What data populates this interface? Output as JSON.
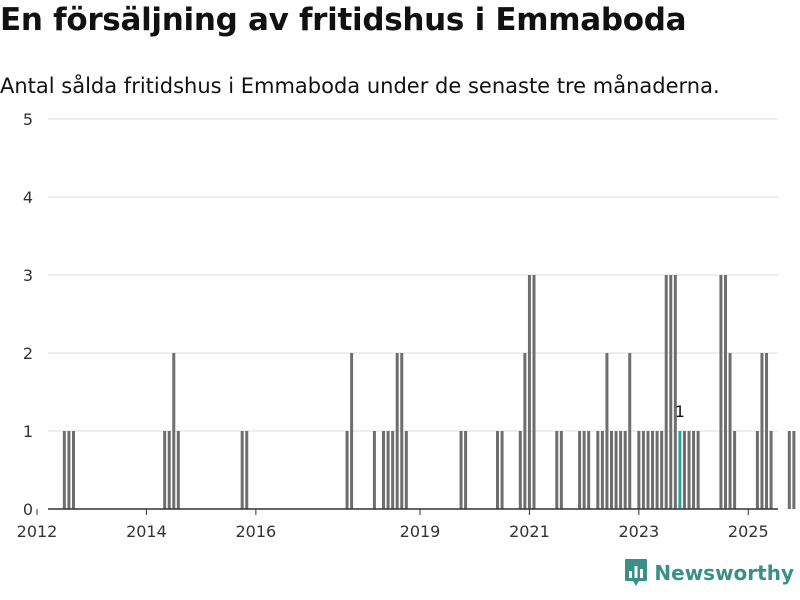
{
  "chart_data": {
    "type": "bar",
    "title": "En försäljning av fritidshus i Emmaboda",
    "subtitle": "Antal sålda fritidshus i Emmaboda under de senaste tre månaderna.",
    "xlabel": "",
    "ylabel": "",
    "ylim": [
      0,
      5
    ],
    "y_ticks": [
      0,
      1,
      2,
      3,
      4,
      5
    ],
    "x_ticks": [
      "2012",
      "2014",
      "2016",
      "2019",
      "2021",
      "2023",
      "2025"
    ],
    "grid": true,
    "bar_color": "#6e6e6e",
    "highlight_color": "#2aa39a",
    "highlight_index": 48,
    "highlight_label": "1",
    "months": [
      "2012-07",
      "2012-08",
      "2012-09",
      "2014-05",
      "2014-06",
      "2014-07",
      "2014-08",
      "2015-10",
      "2015-11",
      "2017-09",
      "2017-10",
      "2018-03",
      "2018-05",
      "2018-06",
      "2018-07",
      "2018-08",
      "2018-09",
      "2018-10",
      "2019-10",
      "2019-11",
      "2020-06",
      "2020-07",
      "2020-11",
      "2020-12",
      "2021-01",
      "2021-02",
      "2021-07",
      "2021-08",
      "2021-12",
      "2022-01",
      "2022-02",
      "2022-04",
      "2022-05",
      "2022-06",
      "2022-07",
      "2022-08",
      "2022-09",
      "2022-10",
      "2022-11",
      "2023-01",
      "2023-02",
      "2023-03",
      "2023-04",
      "2023-05",
      "2023-06",
      "2023-07",
      "2023-08",
      "2023-09",
      "2023-10",
      "2023-11",
      "2023-12",
      "2024-01",
      "2024-02",
      "2024-07",
      "2024-08",
      "2024-09",
      "2024-10",
      "2025-03",
      "2025-04",
      "2025-05",
      "2025-06",
      "2025-10",
      "2025-11"
    ],
    "values": [
      1,
      1,
      1,
      1,
      1,
      2,
      1,
      1,
      1,
      1,
      2,
      1,
      1,
      1,
      1,
      2,
      2,
      1,
      1,
      1,
      1,
      1,
      1,
      2,
      3,
      3,
      1,
      1,
      1,
      1,
      1,
      1,
      1,
      2,
      1,
      1,
      1,
      1,
      2,
      1,
      1,
      1,
      1,
      1,
      1,
      3,
      3,
      3,
      1,
      1,
      1,
      1,
      1,
      3,
      3,
      2,
      1,
      1,
      2,
      2,
      1,
      1,
      1
    ]
  },
  "brand": {
    "name": "Newsworthy",
    "icon": "newsworthy-logo-icon",
    "color": "#3a8f88"
  }
}
